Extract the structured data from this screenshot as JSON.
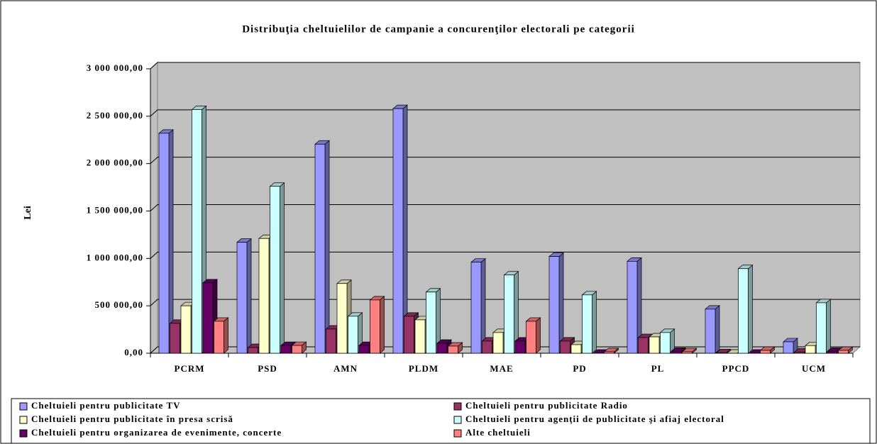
{
  "chart_data": {
    "type": "bar3d",
    "title": "Distribuţia cheltuielilor de campanie a concurenţilor electorali pe categorii",
    "y_label": "Lei",
    "categories": [
      "PCRM",
      "PSD",
      "AMN",
      "PLDM",
      "MAE",
      "PD",
      "PL",
      "PPCD",
      "UCM"
    ],
    "series": [
      {
        "name": "Cheltuieli pentru publicitate TV",
        "color": "#9999ff",
        "values": [
          2320000,
          1170000,
          2205000,
          2580000,
          960000,
          1020000,
          970000,
          465000,
          120000
        ]
      },
      {
        "name": "Cheltuieli pentru publicitate Radio",
        "color": "#993366",
        "values": [
          315000,
          60000,
          255000,
          390000,
          128000,
          128000,
          165000,
          5000,
          12000
        ]
      },
      {
        "name": "Cheltuieli pentru publicitate în presa scrisă",
        "color": "#ffffcc",
        "values": [
          500000,
          1210000,
          735000,
          352000,
          218000,
          90000,
          172000,
          0,
          80000
        ]
      },
      {
        "name": "Cheltuieli pentru agenţii de publicitate şi afiaj electoral",
        "color": "#ccffff",
        "values": [
          2570000,
          1760000,
          390000,
          645000,
          825000,
          615000,
          218000,
          892000,
          532000
        ]
      },
      {
        "name": "Cheltuieli pentru organizarea de evenimente, concerte",
        "color": "#660066",
        "values": [
          742000,
          82000,
          82000,
          105000,
          128000,
          0,
          20000,
          0,
          20000
        ]
      },
      {
        "name": "Alte cheltuieli",
        "color": "#ff8080",
        "values": [
          337000,
          82000,
          562000,
          75000,
          337000,
          15000,
          15000,
          30000,
          30000
        ]
      }
    ],
    "ylim": [
      0,
      3000000
    ],
    "yticks": [
      {
        "value": 0,
        "label": "0,00"
      },
      {
        "value": 500000,
        "label": "500 000,00"
      },
      {
        "value": 1000000,
        "label": "1 000 000,00"
      },
      {
        "value": 1500000,
        "label": "1 500 000,00"
      },
      {
        "value": 2000000,
        "label": "2 000 000,00"
      },
      {
        "value": 2500000,
        "label": "2 500 000,00"
      },
      {
        "value": 3000000,
        "label": "3 000 000,00"
      }
    ],
    "grid": true
  }
}
